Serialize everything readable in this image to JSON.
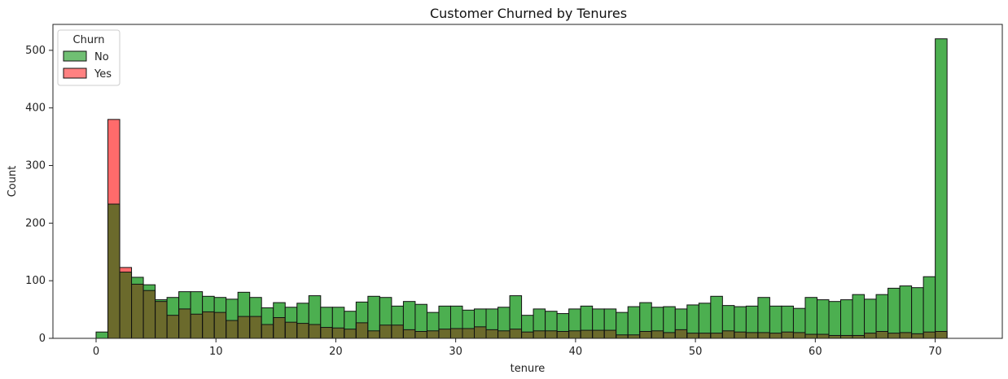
{
  "chart_data": {
    "type": "bar",
    "title": "Customer Churned by Tenures",
    "xlabel": "tenure",
    "ylabel": "Count",
    "xlim": [
      -3.6,
      75.6
    ],
    "ylim": [
      0,
      545
    ],
    "x_ticks": [
      0,
      10,
      20,
      30,
      40,
      50,
      60,
      70
    ],
    "y_ticks": [
      0,
      100,
      200,
      300,
      400,
      500
    ],
    "bin_start": 0,
    "bin_width": 0.986,
    "grid": false,
    "legend": {
      "title": "Churn",
      "placement": "top-left"
    },
    "series": [
      {
        "name": "No",
        "color": "#4caf50",
        "values": [
          11,
          233,
          115,
          106,
          93,
          67,
          71,
          81,
          81,
          73,
          71,
          68,
          80,
          71,
          53,
          62,
          54,
          61,
          74,
          54,
          54,
          47,
          63,
          73,
          71,
          56,
          64,
          59,
          45,
          56,
          56,
          49,
          51,
          51,
          54,
          74,
          40,
          51,
          47,
          43,
          51,
          56,
          51,
          51,
          45,
          55,
          62,
          54,
          55,
          51,
          58,
          61,
          73,
          57,
          55,
          56,
          71,
          56,
          56,
          52,
          71,
          67,
          64,
          67,
          76,
          68,
          76,
          87,
          91,
          88,
          107,
          520
        ]
      },
      {
        "name": "Yes",
        "color": "#ff6b6b",
        "values": [
          0,
          380,
          123,
          94,
          83,
          64,
          40,
          51,
          42,
          46,
          45,
          31,
          38,
          38,
          24,
          36,
          28,
          26,
          24,
          19,
          18,
          16,
          27,
          13,
          23,
          23,
          15,
          12,
          13,
          16,
          17,
          17,
          20,
          15,
          13,
          16,
          11,
          13,
          13,
          12,
          13,
          14,
          14,
          14,
          6,
          6,
          12,
          13,
          10,
          15,
          9,
          9,
          9,
          13,
          11,
          10,
          10,
          9,
          11,
          10,
          7,
          7,
          5,
          5,
          5,
          9,
          12,
          9,
          10,
          8,
          11,
          12
        ]
      }
    ],
    "overlap_color": "#6b6a2c"
  }
}
